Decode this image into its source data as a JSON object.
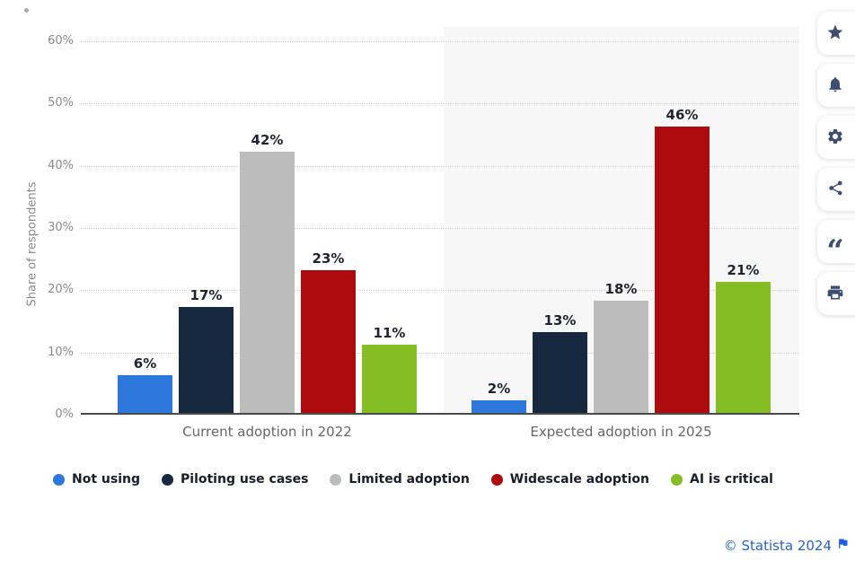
{
  "chart_data": {
    "type": "bar",
    "title": "",
    "xlabel": "",
    "ylabel": "Share of respondents",
    "ylim": [
      0,
      60
    ],
    "yticks": [
      0,
      10,
      20,
      30,
      40,
      50,
      60
    ],
    "ytick_labels": [
      "0%",
      "10%",
      "20%",
      "30%",
      "40%",
      "50%",
      "60%"
    ],
    "grid": "horizontal-dotted",
    "legend_position": "bottom",
    "categories": [
      "Current adoption in 2022",
      "Expected adoption in 2025"
    ],
    "series": [
      {
        "name": "Not using",
        "color": "#2d77dd",
        "values": [
          6,
          2
        ]
      },
      {
        "name": "Piloting use cases",
        "color": "#16293e",
        "values": [
          17,
          13
        ]
      },
      {
        "name": "Limited adoption",
        "color": "#bcbcbc",
        "values": [
          42,
          18
        ]
      },
      {
        "name": "Widescale adoption",
        "color": "#ad0b0e",
        "values": [
          23,
          46
        ]
      },
      {
        "name": "AI is critical",
        "color": "#85bd24",
        "values": [
          11,
          21
        ]
      }
    ],
    "value_labels": [
      [
        "6%",
        "17%",
        "42%",
        "23%",
        "11%"
      ],
      [
        "2%",
        "13%",
        "18%",
        "46%",
        "21%"
      ]
    ],
    "band_color": "#f7f7f7"
  },
  "toolbar": {
    "buttons": [
      {
        "id": "favorite",
        "icon": "star-icon"
      },
      {
        "id": "notifications",
        "icon": "bell-icon"
      },
      {
        "id": "settings",
        "icon": "gear-icon"
      },
      {
        "id": "share",
        "icon": "share-icon"
      },
      {
        "id": "cite",
        "icon": "quote-icon"
      },
      {
        "id": "print",
        "icon": "printer-icon"
      }
    ]
  },
  "footer": {
    "copyright": "© Statista 2024",
    "flag_icon": "flag-icon"
  },
  "colors": {
    "axis": "#4a4a4a",
    "gridline": "#cfcfcf",
    "tick_text": "#8b8b8b",
    "category_text": "#666666",
    "value_text": "#1f2430",
    "legend_text": "#191d28",
    "toolbar_icon": "#3d4e71",
    "footer_link": "#2465c8"
  }
}
